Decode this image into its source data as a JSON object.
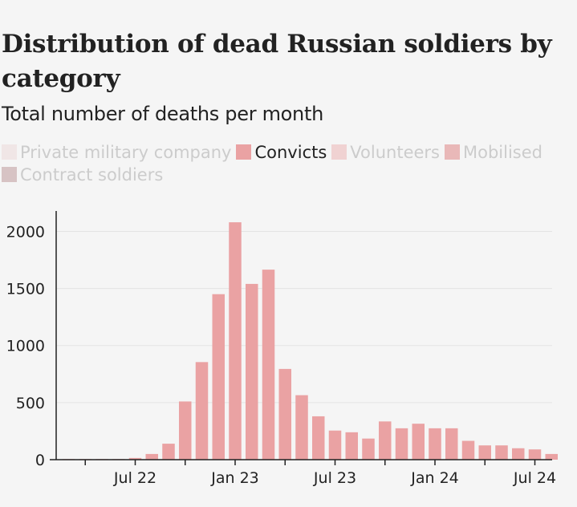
{
  "title": "Distribution of dead Russian soldiers by category",
  "subtitle": "Total number of deaths per month",
  "legend": [
    {
      "label": "Private military company",
      "color": "#f0e6e6",
      "active": false
    },
    {
      "label": "Convicts",
      "color": "#eaa2a3",
      "active": true
    },
    {
      "label": "Volunteers",
      "color": "#f0d2d2",
      "active": false
    },
    {
      "label": "Mobilised",
      "color": "#e9b8b8",
      "active": false
    },
    {
      "label": "Contract soldiers",
      "color": "#d7c3c4",
      "active": false
    }
  ],
  "colors": {
    "bar": "#eaa2a3",
    "axis": "#222222",
    "grid": "#e4e4e4",
    "inactive_text": "#cccccc"
  },
  "chart_data": {
    "type": "bar",
    "series_name": "Convicts",
    "categories": [
      "Mar 22",
      "Apr 22",
      "May 22",
      "Jun 22",
      "Jul 22",
      "Aug 22",
      "Sep 22",
      "Oct 22",
      "Nov 22",
      "Dec 22",
      "Jan 23",
      "Feb 23",
      "Mar 23",
      "Apr 23",
      "May 23",
      "Jun 23",
      "Jul 23",
      "Aug 23",
      "Sep 23",
      "Oct 23",
      "Nov 23",
      "Dec 23",
      "Jan 24",
      "Feb 24",
      "Mar 24",
      "Apr 24",
      "May 24",
      "Jun 24",
      "Jul 24",
      "Aug 24"
    ],
    "values": [
      1,
      2,
      3,
      5,
      15,
      50,
      140,
      510,
      855,
      1450,
      2080,
      1540,
      1665,
      795,
      565,
      380,
      255,
      240,
      185,
      335,
      275,
      315,
      275,
      275,
      165,
      125,
      125,
      100,
      90,
      50
    ],
    "x_tick_labels": [
      {
        "label": "",
        "category": "Apr 22"
      },
      {
        "label": "Jul 22",
        "category": "Jul 22"
      },
      {
        "label": "",
        "category": "Oct 22"
      },
      {
        "label": "Jan 23",
        "category": "Jan 23"
      },
      {
        "label": "",
        "category": "Apr 23"
      },
      {
        "label": "Jul 23",
        "category": "Jul 23"
      },
      {
        "label": "",
        "category": "Oct 23"
      },
      {
        "label": "Jan 24",
        "category": "Jan 24"
      },
      {
        "label": "",
        "category": "Apr 24"
      },
      {
        "label": "Jul 24",
        "category": "Jul 24"
      }
    ],
    "y_ticks": [
      0,
      500,
      1000,
      1500,
      2000
    ],
    "ylim": [
      0,
      2200
    ],
    "grid": true,
    "xlabel": "",
    "ylabel": ""
  }
}
